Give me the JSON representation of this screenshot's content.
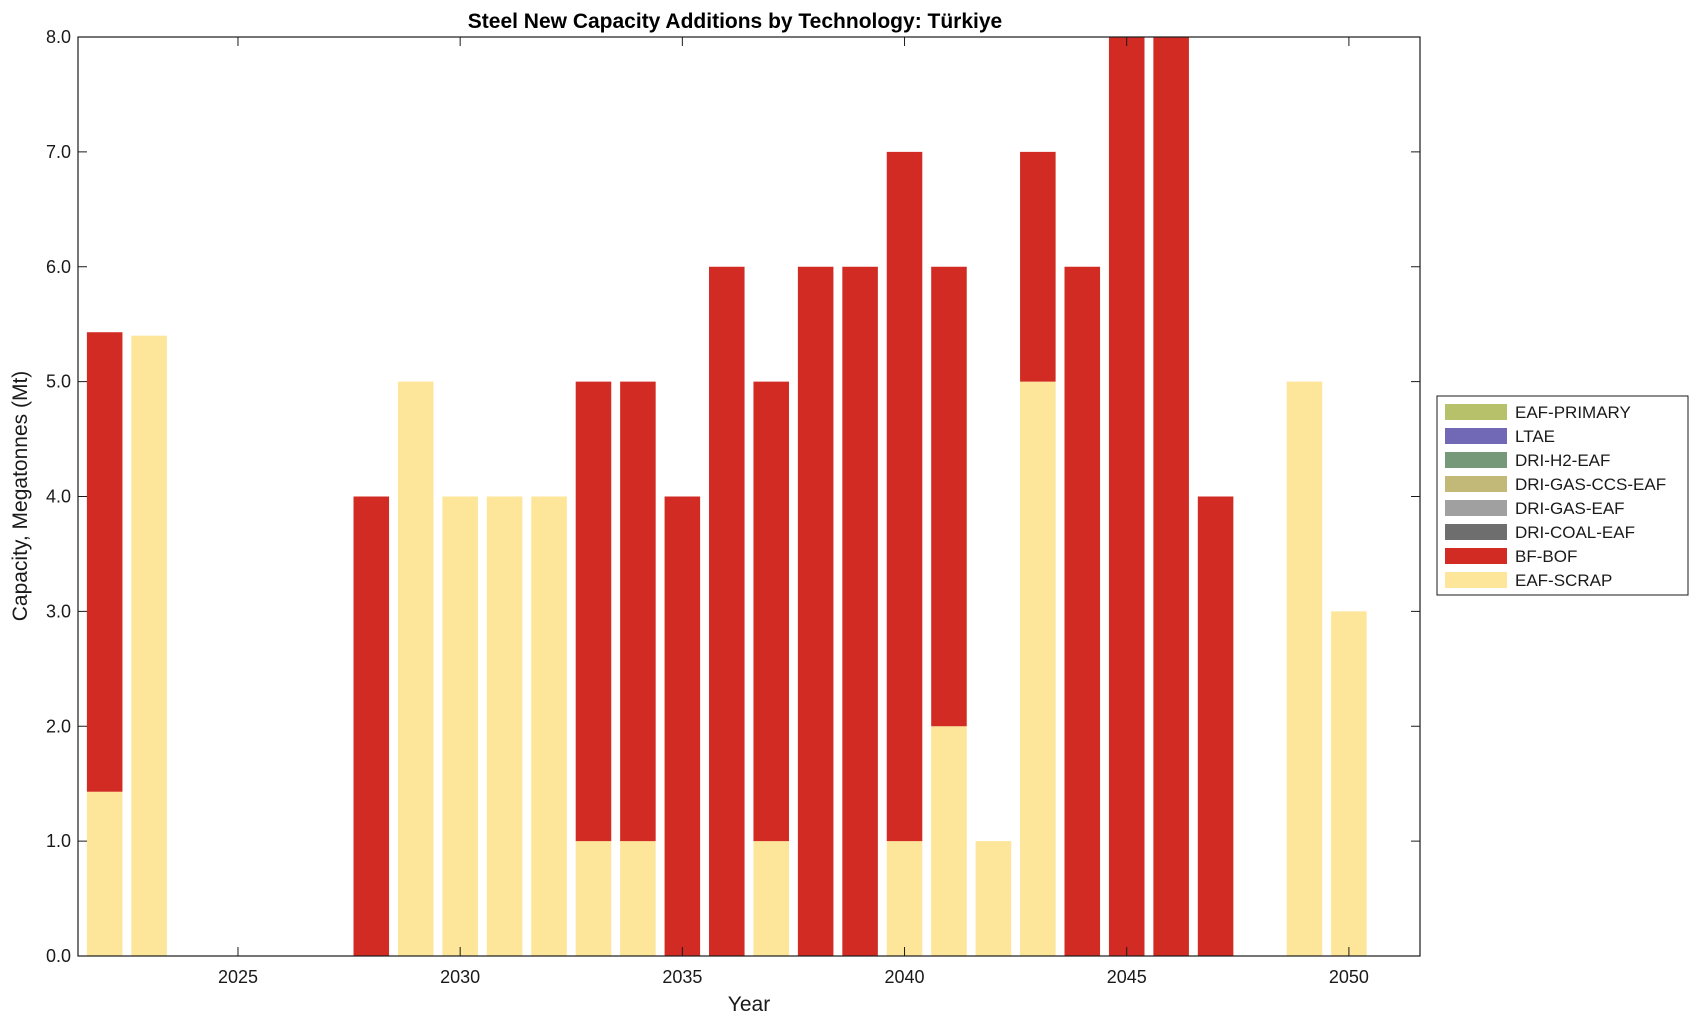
{
  "chart_data": {
    "type": "bar",
    "stacked": true,
    "title": "Steel New Capacity Additions by Technology: Türkiye",
    "xlabel": "Year",
    "ylabel": "Capacity, Megatonnes (Mt)",
    "xlim": [
      2021.4,
      2051.6
    ],
    "ylim": [
      0,
      8
    ],
    "x_ticks": [
      2025,
      2030,
      2035,
      2040,
      2045,
      2050
    ],
    "x_tick_labels": [
      "2025",
      "2030",
      "2035",
      "2040",
      "2045",
      "2050"
    ],
    "y_ticks": [
      0,
      1,
      2,
      3,
      4,
      5,
      6,
      7,
      8
    ],
    "y_tick_labels": [
      "0.0",
      "1.0",
      "2.0",
      "3.0",
      "4.0",
      "5.0",
      "6.0",
      "7.0",
      "8.0"
    ],
    "legend_position": "right",
    "categories": [
      2022,
      2023,
      2024,
      2025,
      2026,
      2027,
      2028,
      2029,
      2030,
      2031,
      2032,
      2033,
      2034,
      2035,
      2036,
      2037,
      2038,
      2039,
      2040,
      2041,
      2042,
      2043,
      2044,
      2045,
      2046,
      2047,
      2048,
      2049,
      2050
    ],
    "series": [
      {
        "name": "EAF-SCRAP",
        "color": "#fde599",
        "values": [
          1.43,
          5.4,
          0,
          0,
          0,
          0,
          0,
          5,
          4,
          4,
          4,
          1,
          1,
          0,
          0,
          1,
          0,
          0,
          1,
          2,
          1,
          5,
          0,
          0,
          0,
          0,
          0,
          5,
          3
        ]
      },
      {
        "name": "BF-BOF",
        "color": "#d22b24",
        "values": [
          4.0,
          0,
          0,
          0,
          0,
          0,
          4,
          0,
          0,
          0,
          0,
          4,
          4,
          4,
          6,
          4,
          6,
          6,
          6,
          4,
          0,
          2,
          6,
          8,
          8,
          4,
          0,
          0,
          0
        ]
      },
      {
        "name": "DRI-COAL-EAF",
        "color": "#6e6e6e",
        "values": [
          0,
          0,
          0,
          0,
          0,
          0,
          0,
          0,
          0,
          0,
          0,
          0,
          0,
          0,
          0,
          0,
          0,
          0,
          0,
          0,
          0,
          0,
          0,
          0,
          0,
          0,
          0,
          0,
          0
        ]
      },
      {
        "name": "DRI-GAS-EAF",
        "color": "#a0a0a0",
        "values": [
          0,
          0,
          0,
          0,
          0,
          0,
          0,
          0,
          0,
          0,
          0,
          0,
          0,
          0,
          0,
          0,
          0,
          0,
          0,
          0,
          0,
          0,
          0,
          0,
          0,
          0,
          0,
          0,
          0
        ]
      },
      {
        "name": "DRI-GAS-CCS-EAF",
        "color": "#c2b878",
        "values": [
          0,
          0,
          0,
          0,
          0,
          0,
          0,
          0,
          0,
          0,
          0,
          0,
          0,
          0,
          0,
          0,
          0,
          0,
          0,
          0,
          0,
          0,
          0,
          0,
          0,
          0,
          0,
          0,
          0
        ]
      },
      {
        "name": "DRI-H2-EAF",
        "color": "#76997a",
        "values": [
          0,
          0,
          0,
          0,
          0,
          0,
          0,
          0,
          0,
          0,
          0,
          0,
          0,
          0,
          0,
          0,
          0,
          0,
          0,
          0,
          0,
          0,
          0,
          0,
          0,
          0,
          0,
          0,
          0
        ]
      },
      {
        "name": "LTAE",
        "color": "#7169b5",
        "values": [
          0,
          0,
          0,
          0,
          0,
          0,
          0,
          0,
          0,
          0,
          0,
          0,
          0,
          0,
          0,
          0,
          0,
          0,
          0,
          0,
          0,
          0,
          0,
          0,
          0,
          0,
          0,
          0,
          0
        ]
      },
      {
        "name": "EAF-PRIMARY",
        "color": "#b7c16a",
        "values": [
          0,
          0,
          0,
          0,
          0,
          0,
          0,
          0,
          0,
          0,
          0,
          0,
          0,
          0,
          0,
          0,
          0,
          0,
          0,
          0,
          0,
          0,
          0,
          0,
          0,
          0,
          0,
          0,
          0
        ]
      }
    ],
    "legend_order": [
      "EAF-PRIMARY",
      "LTAE",
      "DRI-H2-EAF",
      "DRI-GAS-CCS-EAF",
      "DRI-GAS-EAF",
      "DRI-COAL-EAF",
      "BF-BOF",
      "EAF-SCRAP"
    ]
  }
}
